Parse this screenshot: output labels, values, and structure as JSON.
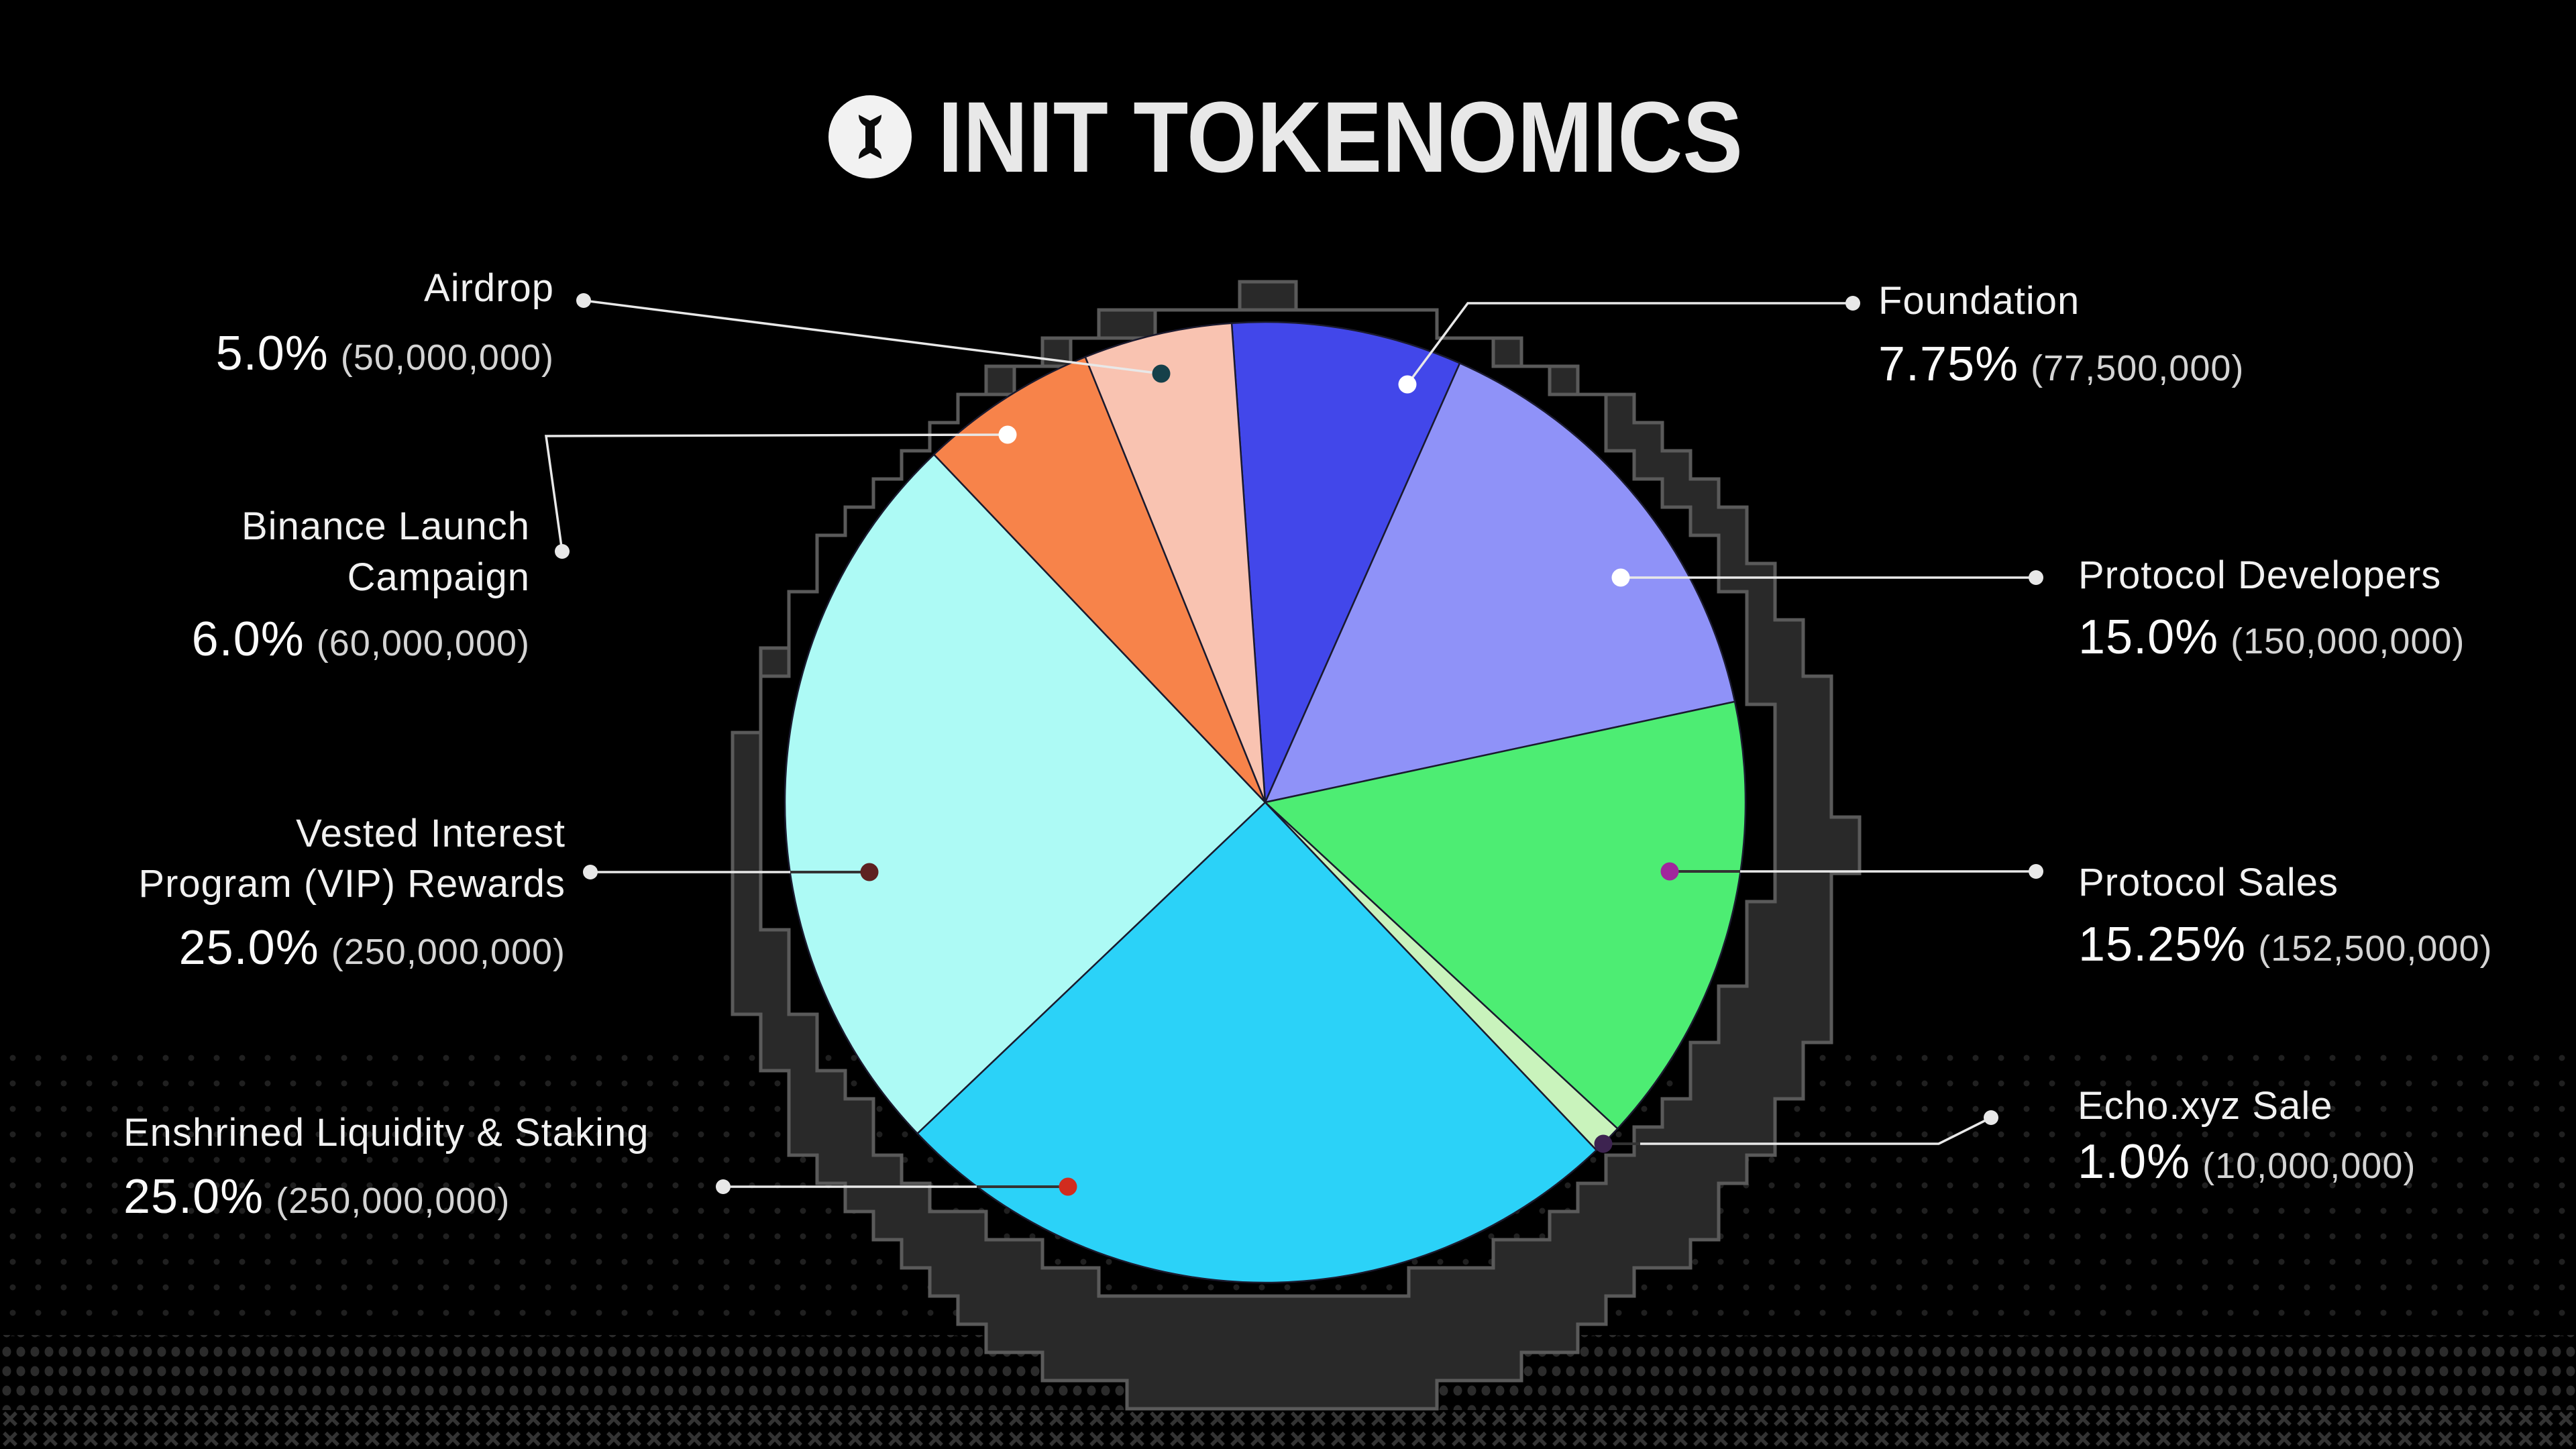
{
  "title": {
    "logo_icon": "init-bone-logo",
    "text": "INIT TOKENOMICS"
  },
  "background": {
    "color": "#000000",
    "texture": "pixel-dots-and-x-grid"
  },
  "accent_colors": {
    "ring_fill": "#292929",
    "ring_stroke": "#5a5a5a",
    "leader_line": "#e8e8e8",
    "label_text": "#f1f1f1",
    "amount_text": "#d4d4d4"
  },
  "chart_data": {
    "type": "pie",
    "title": "INIT TOKENOMICS",
    "direction": "clockwise",
    "start_angle_deg": -94,
    "legend_position": "callouts",
    "slices": [
      {
        "id": "foundation",
        "label_lines": [
          "Foundation"
        ],
        "pct": 7.75,
        "pct_text": "7.75%",
        "amount_text": "(77,500,000)",
        "color": "#4247ea",
        "callout_side": "right",
        "slice_dot_color": "#ffffff"
      },
      {
        "id": "protocol_developers",
        "label_lines": [
          "Protocol Developers"
        ],
        "pct": 15.0,
        "pct_text": "15.0%",
        "amount_text": "(150,000,000)",
        "color": "#8f92f8",
        "callout_side": "right",
        "slice_dot_color": "#ffffff"
      },
      {
        "id": "protocol_sales",
        "label_lines": [
          "Protocol Sales"
        ],
        "pct": 15.25,
        "pct_text": "15.25%",
        "amount_text": "(152,500,000)",
        "color": "#4ded73",
        "callout_side": "right",
        "slice_dot_color": "#a1269c"
      },
      {
        "id": "echo_sale",
        "label_lines": [
          "Echo.xyz Sale"
        ],
        "pct": 1.0,
        "pct_text": "1.0%",
        "amount_text": "(10,000,000)",
        "color": "#c9f3bc",
        "callout_side": "right",
        "slice_dot_color": "#3d2350"
      },
      {
        "id": "enshrined_liquidity_staking",
        "label_lines": [
          "Enshrined Liquidity & Staking"
        ],
        "pct": 25.0,
        "pct_text": "25.0%",
        "amount_text": "(250,000,000)",
        "color": "#2bd2f8",
        "callout_side": "left",
        "slice_dot_color": "#d12c1e"
      },
      {
        "id": "vip_rewards",
        "label_lines": [
          "Vested Interest",
          "Program (VIP) Rewards"
        ],
        "pct": 25.0,
        "pct_text": "25.0%",
        "amount_text": "(250,000,000)",
        "color": "#adfaf5",
        "callout_side": "left",
        "slice_dot_color": "#5e2121"
      },
      {
        "id": "binance_launch_campaign",
        "label_lines": [
          "Binance Launch",
          "Campaign"
        ],
        "pct": 6.0,
        "pct_text": "6.0%",
        "amount_text": "(60,000,000)",
        "color": "#f7834a",
        "callout_side": "left",
        "slice_dot_color": "#ffffff"
      },
      {
        "id": "airdrop",
        "label_lines": [
          "Airdrop"
        ],
        "pct": 5.0,
        "pct_text": "5.0%",
        "amount_text": "(50,000,000)",
        "color": "#f9c3b1",
        "callout_side": "left",
        "slice_dot_color": "#16404a"
      }
    ]
  }
}
